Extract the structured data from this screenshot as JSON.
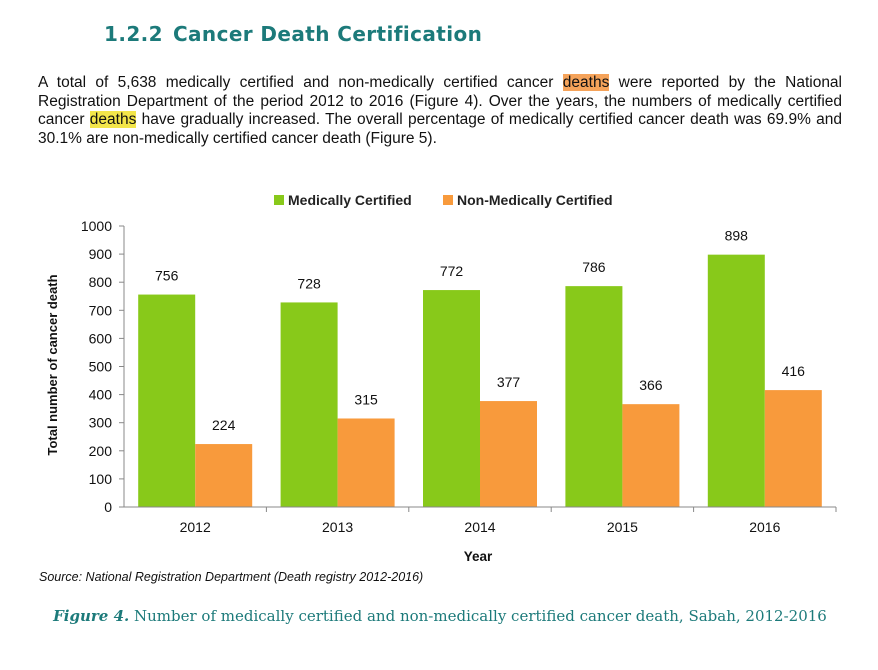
{
  "section": {
    "number": "1.2.2",
    "title": "Cancer Death Certification"
  },
  "paragraph": {
    "p1": "A total of 5,638 medically certified and non-medically certified cancer ",
    "hl1": "deaths",
    "p2": " were reported by the National Registration Department of the period 2012 to 2016 (Figure 4). Over the years, the numbers of medically certified cancer ",
    "hl2": "deaths",
    "p3": " have gradually increased. The overall percentage of medically certified cancer death was 69.9% and 30.1% are non-medically certified cancer death (Figure 5).",
    "hl1_color": "#f5a35a",
    "hl2_color": "#f3e64a"
  },
  "chart_data": {
    "type": "bar",
    "categories": [
      "2012",
      "2013",
      "2014",
      "2015",
      "2016"
    ],
    "series": [
      {
        "name": "Medically Certified",
        "values": [
          756,
          728,
          772,
          786,
          898
        ],
        "color": "#88c91a"
      },
      {
        "name": "Non-Medically Certified",
        "values": [
          224,
          315,
          377,
          366,
          416
        ],
        "color": "#f89a3c"
      }
    ],
    "xlabel": "Year",
    "ylabel": "Total number of cancer death",
    "ylim": [
      0,
      1000
    ],
    "yticks": [
      0,
      100,
      200,
      300,
      400,
      500,
      600,
      700,
      800,
      900,
      1000
    ],
    "grid": false,
    "legend_position": "top-center"
  },
  "source": "Source: National Registration Department (Death registry 2012-2016)",
  "caption": {
    "label": "Figure 4.",
    "text": " Number of medically certified and non-medically certified cancer death, Sabah, 2012-2016"
  }
}
